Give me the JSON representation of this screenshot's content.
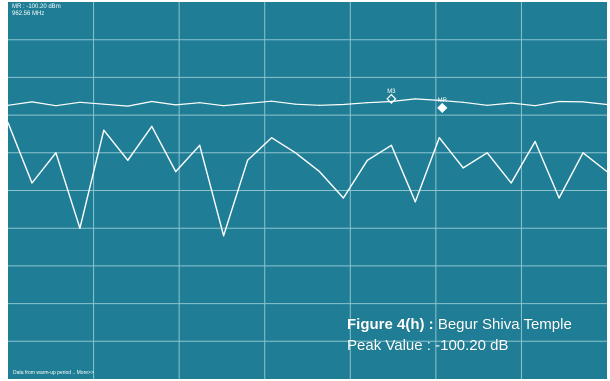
{
  "marker_readout": {
    "line1": "MR : -100.20 dBm",
    "line2": "962.56 MHz"
  },
  "caption": {
    "figure_label": "Figure 4(h) :",
    "figure_title": " Begur Shiva Temple",
    "peak_label": "Peak Value : -100.20 dB"
  },
  "footer": {
    "text": "Data from warm-up period .. More>>"
  },
  "colors": {
    "background": "#1f7e95",
    "grid": "#8cc3cf",
    "trace": "#ffffff"
  },
  "chart_data": {
    "type": "line",
    "title": "",
    "xlabel": "",
    "ylabel": "",
    "grid": true,
    "x": [
      0,
      4,
      8,
      12,
      16,
      20,
      24,
      28,
      32,
      36,
      40,
      44,
      48,
      52,
      56,
      60,
      64,
      68,
      72,
      76,
      80,
      84,
      88,
      92,
      96,
      100
    ],
    "xlim": [
      0,
      100
    ],
    "ylim": [
      0,
      100
    ],
    "series": [
      {
        "values": [
          72.6,
          73.5,
          72.5,
          73.4,
          72.9,
          72.4,
          73.6,
          72.7,
          73.3,
          72.5,
          73.1,
          73.7,
          72.9,
          72.6,
          72.8,
          73.3,
          73.6,
          74.3,
          73.9,
          73.4,
          72.6,
          73.2,
          72.5,
          73.6,
          73.5,
          72.8
        ]
      },
      {
        "values": [
          68,
          52,
          60,
          40,
          66,
          58,
          67,
          55,
          62,
          38,
          58,
          64,
          60,
          55,
          48,
          58,
          62,
          47,
          64,
          56,
          60,
          52,
          63,
          48,
          60,
          55
        ]
      }
    ],
    "markers": [
      {
        "label": "M3",
        "x": 64,
        "y": 74.3
      },
      {
        "label": "MR",
        "x": 72.5,
        "y": 71.9
      }
    ]
  }
}
